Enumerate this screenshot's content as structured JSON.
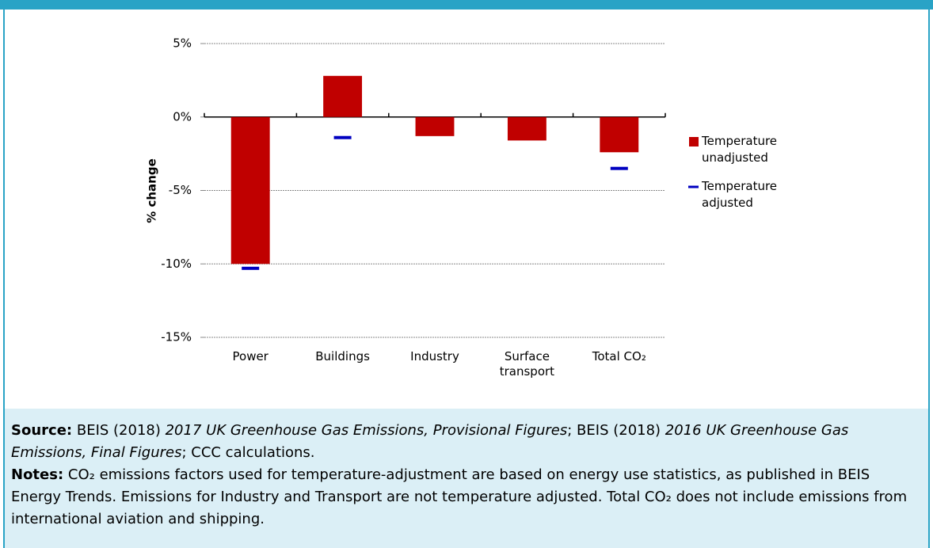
{
  "chart_data": {
    "type": "bar",
    "y_label": "% change",
    "categories": [
      "Power",
      "Buildings",
      "Industry",
      "Surface transport",
      "Total CO₂"
    ],
    "series": [
      {
        "name": "Temperature unadjusted",
        "color": "#c00000",
        "values": [
          -10.0,
          2.8,
          -1.3,
          -1.6,
          -2.4
        ]
      },
      {
        "name": "Temperature adjusted",
        "color": "#0000c0",
        "values": [
          -10.3,
          -1.4,
          null,
          null,
          -3.5
        ]
      }
    ],
    "ylim": [
      -15,
      5
    ],
    "yticks": [
      {
        "value": 5,
        "label": "5%"
      },
      {
        "value": 0,
        "label": "0%"
      },
      {
        "value": -5,
        "label": "-5%"
      },
      {
        "value": -10,
        "label": "-10%"
      },
      {
        "value": -15,
        "label": "-15%"
      }
    ],
    "grid": true,
    "legend": "right"
  },
  "source": {
    "label": "Source:",
    "parts": [
      "BEIS (2018) ",
      "2017 UK Greenhouse Gas Emissions, Provisional Figures",
      "; BEIS (2018) ",
      "2016 UK Greenhouse Gas Emissions, Final Figures",
      "; CCC calculations."
    ]
  },
  "notes": {
    "label": "Notes:",
    "text": "CO₂ emissions factors used for temperature-adjustment are based on energy use statistics, as published in BEIS Energy Trends. Emissions for Industry and Transport are not temperature adjusted. Total CO₂ does not include emissions from international aviation and shipping."
  }
}
